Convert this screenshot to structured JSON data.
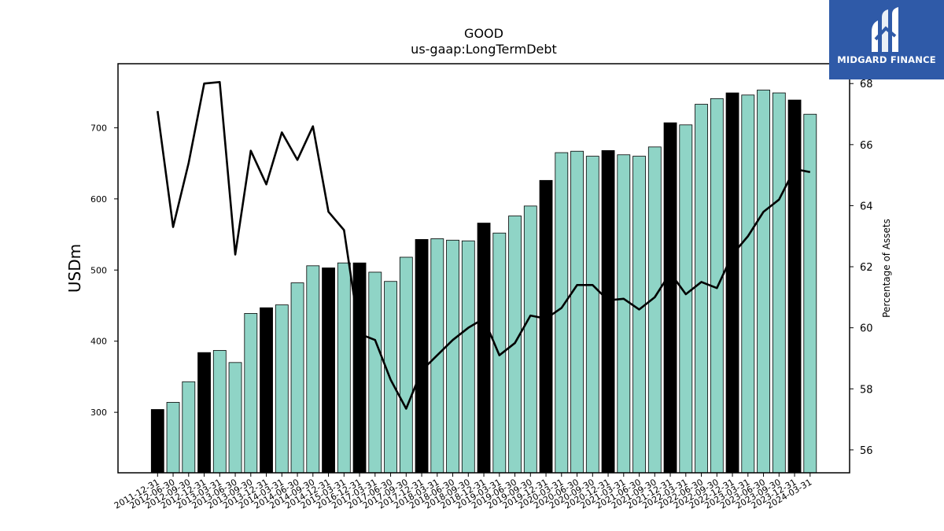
{
  "chart_data": {
    "type": "bar+line",
    "title": "GOOD",
    "subtitle": "us-gaap:LongTermDebt",
    "ylabel_left": "USDm",
    "ylabel_right": "Percentage of Assets",
    "ylim_left": [
      215,
      790
    ],
    "ylim_right": [
      55.25,
      68.65
    ],
    "yticks_left": [
      300,
      400,
      500,
      600,
      700
    ],
    "yticks_right": [
      56,
      58,
      60,
      62,
      64,
      66,
      68
    ],
    "categories": [
      "2011-12-31",
      "2012-06-30",
      "2012-09-30",
      "2012-12-31",
      "2013-03-31",
      "2013-06-30",
      "2013-09-30",
      "2013-12-31",
      "2014-03-31",
      "2014-06-30",
      "2014-09-30",
      "2014-12-31",
      "2015-03-31",
      "2016-12-31",
      "2017-03-31",
      "2017-06-30",
      "2017-09-30",
      "2017-12-31",
      "2018-03-31",
      "2018-06-30",
      "2018-09-30",
      "2018-12-31",
      "2019-03-31",
      "2019-06-30",
      "2019-09-30",
      "2019-12-31",
      "2020-03-31",
      "2020-06-30",
      "2020-09-30",
      "2020-12-31",
      "2021-03-31",
      "2021-06-30",
      "2021-09-30",
      "2021-12-31",
      "2022-03-31",
      "2022-06-30",
      "2022-09-30",
      "2022-12-31",
      "2023-03-31",
      "2023-06-30",
      "2023-09-30",
      "2023-12-31",
      "2024-03-31"
    ],
    "series": [
      {
        "kind": "bar",
        "values": [
          304,
          314,
          343,
          384,
          387,
          370,
          439,
          447,
          451,
          482,
          506,
          503,
          510,
          510,
          497,
          484,
          518,
          543,
          544,
          542,
          541,
          566,
          552,
          576,
          590,
          626,
          665,
          667,
          660,
          668,
          662,
          660,
          673,
          707,
          704,
          733,
          741,
          749,
          746,
          753,
          749,
          739,
          719
        ],
        "highlight": [
          true,
          false,
          false,
          true,
          false,
          false,
          false,
          true,
          false,
          false,
          false,
          true,
          false,
          true,
          false,
          false,
          false,
          true,
          false,
          false,
          false,
          true,
          false,
          false,
          false,
          true,
          false,
          false,
          false,
          true,
          false,
          false,
          false,
          true,
          false,
          false,
          false,
          true,
          false,
          false,
          false,
          true,
          false
        ]
      },
      {
        "kind": "line",
        "axis": "right",
        "values": [
          67.1,
          63.3,
          65.4,
          68.0,
          68.05,
          62.4,
          65.8,
          64.7,
          66.4,
          65.5,
          66.6,
          63.8,
          63.2,
          59.8,
          59.6,
          58.3,
          57.35,
          58.6,
          59.1,
          59.6,
          60.0,
          60.3,
          59.1,
          59.5,
          60.4,
          60.3,
          60.65,
          61.4,
          61.4,
          60.9,
          60.95,
          60.6,
          61.0,
          61.8,
          61.1,
          61.5,
          61.3,
          62.4,
          63.0,
          63.8,
          64.2,
          65.2,
          65.1
        ]
      }
    ],
    "colors": {
      "bar": "#8fd4c6",
      "bar_highlight": "#000000",
      "line": "#000000"
    }
  },
  "logo": {
    "text": "MIDGARD FINANCE",
    "background": "#2f5aa8"
  }
}
